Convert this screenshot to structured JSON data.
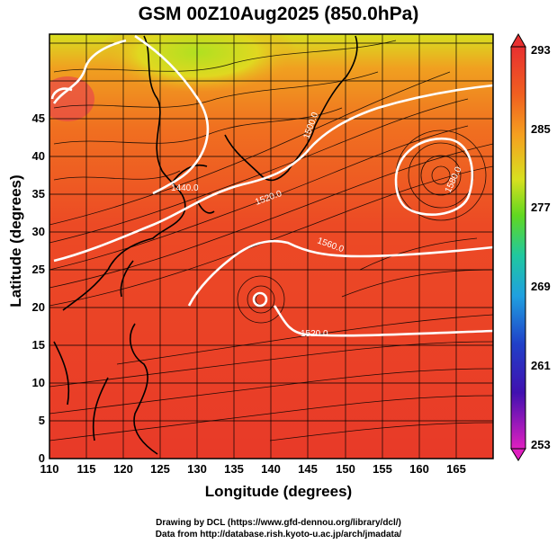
{
  "title": "GSM 00Z10Aug2025 (850.0hPa)",
  "x_axis": {
    "label": "Longitude (degrees)",
    "ticks": [
      "110",
      "115",
      "120",
      "125",
      "130",
      "135",
      "140",
      "145",
      "150",
      "155",
      "160",
      "165"
    ]
  },
  "y_axis": {
    "label": "Latitude  (degrees)",
    "ticks": [
      "0",
      "5",
      "10",
      "15",
      "20",
      "25",
      "30",
      "35",
      "40",
      "45"
    ]
  },
  "colorbar": {
    "labels": [
      "293",
      "285",
      "277",
      "269",
      "261",
      "253"
    ],
    "colors": [
      "#e83030",
      "#f06020",
      "#f5a020",
      "#e8d820",
      "#80dd20",
      "#20cc60",
      "#20c8c8",
      "#2080e0",
      "#2030c0",
      "#6010b0",
      "#d020c0"
    ]
  },
  "contours": [
    "1440.0",
    "1520.0",
    "1560.0",
    "1520.0",
    "1580.0",
    "1500.0"
  ],
  "credits": {
    "line1": "Drawing by DCL (https://www.gfd-dennou.org/library/dcl/)",
    "line2": "Data from http://database.rish.kyoto-u.ac.jp/arch/jmadata/"
  }
}
